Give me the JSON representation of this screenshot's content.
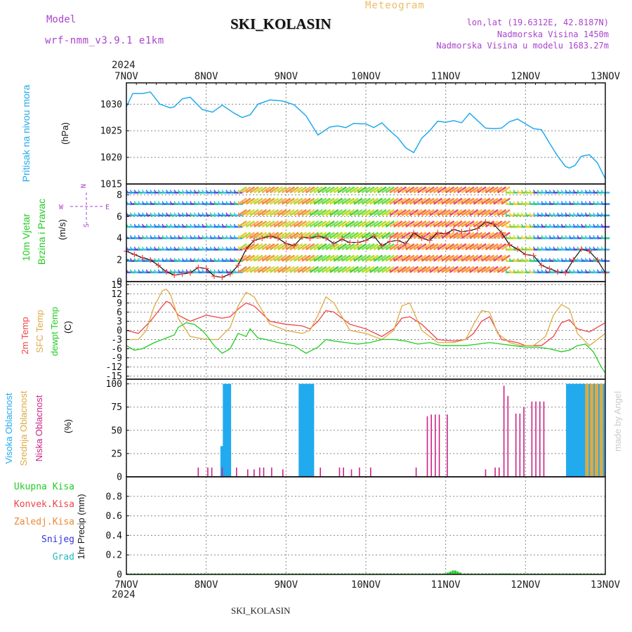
{
  "header": {
    "model_label": "Model",
    "model_name": "wrf-nmm_v3.9.1 e1km",
    "title": "SKI_KOLASIN",
    "meteogram_label": "Meteogram",
    "lonlat": "lon,lat (19.6312E, 42.8187N)",
    "elevation": "Nadmorska Visina 1450m",
    "model_elevation": "Nadmorska Visina u modelu 1683.27m",
    "year_top": "2024",
    "year_bottom": "2024",
    "footer_station": "SKI_KOLASIN",
    "watermark": "made by Angel"
  },
  "colors": {
    "pressure": "#22aaee",
    "wind_label": "#22cc22",
    "wind_compass": "#aa44cc",
    "temp_2m": "#ee4444",
    "temp_sfc": "#ddaa44",
    "dewpoint": "#22cc22",
    "cloud_high": "#22aaee",
    "cloud_mid": "#ddaa44",
    "cloud_low": "#cc2288",
    "precip_total": "#22cc22",
    "precip_conv": "#ee4444",
    "precip_frz": "#ee8833",
    "snow": "#3333dd",
    "graupel": "#22bbbb",
    "header_purple": "#aa44cc",
    "meteogram_label": "#eebb66"
  },
  "chart_data": [
    {
      "type": "line",
      "panel": "pressure",
      "ylabel_name": "Pritisak na nivou mora",
      "ylabel_unit": "(hPa)",
      "x_ticks": [
        "7NOV",
        "8NOV",
        "9NOV",
        "10NOV",
        "11NOV",
        "12NOV",
        "13NOV"
      ],
      "xlim_days": [
        0,
        6
      ],
      "ylim": [
        1015,
        1034
      ],
      "y_ticks": [
        1015,
        1020,
        1025,
        1030
      ],
      "grid": true,
      "series": [
        {
          "color": "#22aaee",
          "x": [
            0,
            0.08,
            0.2,
            0.3,
            0.42,
            0.55,
            0.6,
            0.7,
            0.8,
            0.95,
            1.08,
            1.2,
            1.35,
            1.45,
            1.55,
            1.65,
            1.8,
            1.95,
            2.1,
            2.25,
            2.4,
            2.55,
            2.65,
            2.75,
            2.85,
            2.95,
            3.0,
            3.1,
            3.2,
            3.3,
            3.4,
            3.5,
            3.6,
            3.7,
            3.8,
            3.9,
            4.0,
            4.1,
            4.2,
            4.3,
            4.4,
            4.5,
            4.6,
            4.7,
            4.8,
            4.9,
            5.0,
            5.1,
            5.2,
            5.3,
            5.4,
            5.5,
            5.55,
            5.62,
            5.7,
            5.8,
            5.9,
            6.0
          ],
          "y": [
            1029.5,
            1032.0,
            1032.0,
            1032.3,
            1030.0,
            1029.3,
            1029.5,
            1031.0,
            1031.3,
            1029.0,
            1028.5,
            1029.8,
            1028.3,
            1027.5,
            1028.0,
            1030.0,
            1030.8,
            1030.6,
            1029.9,
            1027.8,
            1024.2,
            1025.7,
            1025.9,
            1025.6,
            1026.4,
            1026.3,
            1026.3,
            1025.6,
            1026.5,
            1025.0,
            1023.7,
            1021.8,
            1020.9,
            1023.6,
            1025.0,
            1026.8,
            1026.6,
            1026.9,
            1026.5,
            1028.3,
            1026.9,
            1025.5,
            1025.4,
            1025.5,
            1026.7,
            1027.2,
            1026.3,
            1025.4,
            1025.2,
            1022.7,
            1020.3,
            1018.3,
            1018.0,
            1018.5,
            1020.2,
            1020.5,
            1019.0,
            1016.0
          ]
        }
      ]
    },
    {
      "type": "line",
      "panel": "wind",
      "ylabel_name": "10m Vjetar",
      "ylabel_name2": "Brzina i Pravac",
      "ylabel_unit": "(m/s)",
      "compass_labels": [
        "N",
        "E",
        "S",
        "W"
      ],
      "ylim": [
        0,
        9
      ],
      "y_ticks": [
        0,
        2,
        4,
        6,
        8
      ],
      "grid": true,
      "series": [
        {
          "name": "speed",
          "color": "#111111",
          "x": [
            0,
            0.1,
            0.2,
            0.3,
            0.4,
            0.5,
            0.6,
            0.7,
            0.8,
            0.9,
            1.0,
            1.1,
            1.2,
            1.3,
            1.4,
            1.5,
            1.6,
            1.7,
            1.8,
            1.9,
            2.0,
            2.1,
            2.2,
            2.3,
            2.4,
            2.5,
            2.6,
            2.7,
            2.8,
            2.9,
            3.0,
            3.1,
            3.2,
            3.3,
            3.4,
            3.5,
            3.6,
            3.7,
            3.8,
            3.9,
            4.0,
            4.1,
            4.2,
            4.3,
            4.4,
            4.5,
            4.6,
            4.7,
            4.8,
            4.9,
            5.0,
            5.1,
            5.2,
            5.3,
            5.4,
            5.5,
            5.6,
            5.7,
            5.8,
            5.9,
            6.0
          ],
          "y": [
            2.8,
            2.5,
            2.2,
            2.0,
            1.5,
            0.9,
            0.6,
            0.7,
            0.8,
            1.3,
            1.2,
            0.5,
            0.4,
            0.7,
            1.5,
            3.0,
            3.8,
            4.0,
            4.2,
            4.0,
            3.5,
            3.3,
            4.1,
            4.0,
            4.2,
            4.0,
            3.5,
            3.9,
            3.6,
            3.6,
            3.8,
            4.2,
            3.3,
            3.7,
            3.8,
            3.5,
            4.5,
            4.0,
            3.8,
            4.5,
            4.4,
            4.8,
            4.6,
            4.7,
            4.9,
            5.5,
            5.3,
            4.5,
            3.4,
            3.0,
            2.5,
            2.4,
            1.5,
            1.2,
            0.9,
            0.8,
            2.0,
            3.0,
            2.8,
            2.0,
            0.8
          ]
        }
      ],
      "barb_note": "wind barbs rows"
    },
    {
      "type": "line",
      "panel": "temperature",
      "ylabel_2m": "2m Temp",
      "ylabel_sfc": "SFC Temp",
      "ylabel_dew": "dewpt Temp",
      "ylabel_unit": "(C)",
      "ylim": [
        -16,
        16
      ],
      "y_ticks": [
        -15,
        -12,
        -9,
        -6,
        -3,
        0,
        3,
        6,
        9,
        12,
        15
      ],
      "grid": true,
      "series": [
        {
          "name": "2m Temp",
          "color": "#ee4444",
          "x": [
            0,
            0.15,
            0.3,
            0.45,
            0.5,
            0.55,
            0.65,
            0.8,
            1.0,
            1.2,
            1.3,
            1.4,
            1.5,
            1.6,
            1.8,
            2.0,
            2.2,
            2.3,
            2.4,
            2.5,
            2.6,
            2.8,
            3.0,
            3.2,
            3.35,
            3.45,
            3.55,
            3.7,
            3.9,
            4.1,
            4.25,
            4.35,
            4.45,
            4.55,
            4.7,
            4.9,
            5.0,
            5.2,
            5.35,
            5.45,
            5.55,
            5.65,
            5.8,
            6.0
          ],
          "y": [
            0,
            -1,
            3,
            8,
            9.5,
            9.0,
            5,
            3,
            5,
            4,
            4.5,
            7,
            9,
            8,
            3,
            2,
            1.5,
            0.5,
            3,
            6.5,
            6,
            2,
            0.5,
            -2,
            0.5,
            4,
            4.5,
            2,
            -3,
            -3.5,
            -3,
            -1,
            3,
            4.5,
            -3,
            -4,
            -5,
            -5,
            -2,
            2.5,
            3.5,
            0.5,
            -0.5,
            2.5
          ]
        },
        {
          "name": "SFC Temp",
          "color": "#ddaa44",
          "x": [
            0,
            0.15,
            0.25,
            0.35,
            0.45,
            0.5,
            0.55,
            0.65,
            0.8,
            1.0,
            1.15,
            1.3,
            1.4,
            1.5,
            1.6,
            1.8,
            2.0,
            2.2,
            2.3,
            2.4,
            2.5,
            2.6,
            2.8,
            3.0,
            3.2,
            3.35,
            3.45,
            3.55,
            3.7,
            3.9,
            4.1,
            4.25,
            4.35,
            4.45,
            4.55,
            4.65,
            4.8,
            4.95,
            5.1,
            5.25,
            5.35,
            5.45,
            5.55,
            5.65,
            5.8,
            6.0
          ],
          "y": [
            -3,
            -3,
            0,
            8,
            13,
            13.5,
            12,
            4,
            -2,
            -3,
            -3,
            1,
            8,
            12.5,
            11,
            2,
            0,
            -1,
            0,
            5,
            11,
            9,
            0,
            -1,
            -3,
            0,
            8,
            9,
            0,
            -4,
            -4,
            -3,
            2,
            6.5,
            6,
            -1,
            -4,
            -5,
            -5,
            -2,
            5,
            8.5,
            7,
            -1,
            -5,
            -1
          ]
        },
        {
          "name": "dewpt Temp",
          "color": "#22cc22",
          "x": [
            0,
            0.1,
            0.2,
            0.35,
            0.5,
            0.6,
            0.65,
            0.75,
            0.85,
            0.95,
            1.0,
            1.1,
            1.2,
            1.3,
            1.4,
            1.5,
            1.55,
            1.65,
            1.75,
            1.9,
            2.1,
            2.25,
            2.4,
            2.5,
            2.6,
            2.75,
            2.9,
            3.05,
            3.2,
            3.35,
            3.5,
            3.65,
            3.8,
            3.95,
            4.1,
            4.25,
            4.4,
            4.55,
            4.7,
            4.85,
            5.0,
            5.15,
            5.3,
            5.45,
            5.55,
            5.65,
            5.75,
            5.85,
            5.95,
            6.0
          ],
          "y": [
            -5,
            -6.5,
            -6,
            -4,
            -2.5,
            -1.5,
            1.0,
            2.5,
            2.0,
            0.0,
            -1.5,
            -5,
            -7.5,
            -6,
            -1,
            -2,
            0.5,
            -2.5,
            -3,
            -4,
            -5,
            -7.5,
            -5.5,
            -3,
            -3.5,
            -4,
            -4.5,
            -4,
            -3,
            -3,
            -3.5,
            -4.5,
            -4,
            -5,
            -5,
            -5,
            -4.5,
            -4,
            -4.5,
            -5,
            -5.5,
            -5.5,
            -6,
            -7,
            -6.5,
            -5,
            -4.5,
            -7,
            -12,
            -14
          ]
        }
      ]
    },
    {
      "type": "bar",
      "panel": "clouds",
      "ylabel_high": "Visoka Oblacnost",
      "ylabel_mid": "Srednja Oblacnost",
      "ylabel_low": "Niska Oblacnost",
      "ylabel_unit": "(%)",
      "ylim": [
        0,
        100
      ],
      "y_ticks": [
        0,
        25,
        50,
        75,
        100
      ],
      "grid": true,
      "series": [
        {
          "name": "Visoka Oblacnost",
          "color": "#22aaee",
          "x": [
            1.2,
            1.23,
            1.26,
            1.29,
            2.18,
            2.21,
            2.24,
            2.27,
            2.3,
            2.33,
            5.53,
            5.56,
            5.59,
            5.62,
            5.65,
            5.68,
            5.71,
            5.74,
            5.8,
            5.86,
            5.92,
            5.97
          ],
          "values": [
            33,
            100,
            100,
            100,
            100,
            100,
            100,
            100,
            100,
            100,
            100,
            100,
            100,
            100,
            100,
            100,
            100,
            100,
            100,
            100,
            100,
            100
          ]
        },
        {
          "name": "Srednja Oblacnost",
          "color": "#ddaa44",
          "x": [
            5.77,
            5.83,
            5.89,
            5.95
          ],
          "values": [
            100,
            100,
            100,
            100
          ]
        },
        {
          "name": "Niska Oblacnost",
          "color": "#cc2288",
          "x": [
            0.9,
            1.02,
            1.07,
            1.2,
            1.38,
            1.52,
            1.6,
            1.67,
            1.72,
            1.82,
            1.96,
            2.43,
            2.67,
            2.72,
            2.82,
            2.92,
            3.06,
            3.63,
            3.77,
            3.82,
            3.87,
            3.92,
            4.02,
            4.5,
            4.62,
            4.67,
            4.73,
            4.78,
            4.88,
            4.93,
            4.98,
            5.08,
            5.13,
            5.18,
            5.23
          ],
          "values": [
            10,
            10,
            10,
            10,
            10,
            8,
            8,
            10,
            10,
            10,
            8,
            10,
            10,
            10,
            8,
            10,
            10,
            10,
            65,
            67,
            67,
            67,
            67,
            8,
            10,
            10,
            98,
            87,
            68,
            68,
            75,
            81,
            81,
            81,
            81
          ]
        }
      ],
      "watermark": "made by Angel"
    },
    {
      "type": "bar",
      "panel": "precip",
      "ylabel": "1hr Precip (mm)",
      "ylabel_total": "Ukupna Kisa",
      "ylabel_conv": "Konvek.Kisa",
      "ylabel_frz": "Zaledj.Kisa",
      "ylabel_snow": "Snijeg",
      "ylabel_grad": "Grad",
      "ylim": [
        0,
        1.0
      ],
      "y_ticks": [
        0,
        0.2,
        0.4,
        0.6,
        0.8
      ],
      "grid": true,
      "series": [
        {
          "name": "Ukupna Kisa",
          "color": "#22cc22",
          "x": [
            4.0,
            4.03,
            4.06,
            4.09,
            4.12,
            4.15,
            4.18,
            4.7,
            4.74,
            4.78
          ],
          "values": [
            0.01,
            0.02,
            0.03,
            0.04,
            0.04,
            0.03,
            0.02,
            0.01,
            0.01,
            0.01
          ]
        }
      ]
    }
  ]
}
